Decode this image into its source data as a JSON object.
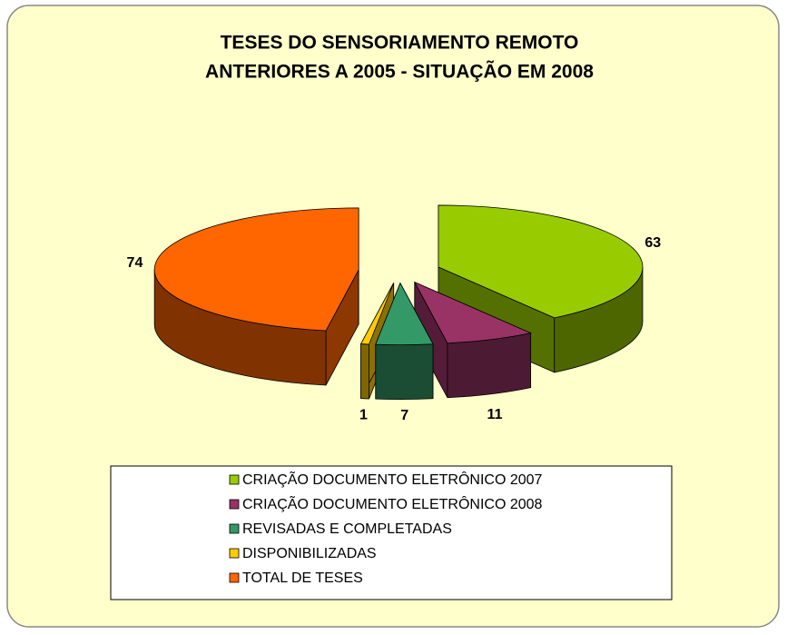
{
  "chart_data": {
    "type": "pie",
    "title": [
      "TESES DO SENSORIAMENTO REMOTO",
      "ANTERIORES A 2005 - SITUAÇÃO EM 2008"
    ],
    "categories": [
      "CRIAÇÃO DOCUMENTO ELETRÔNICO 2007",
      "CRIAÇÃO DOCUMENTO ELETRÔNICO 2008",
      "REVISADAS E COMPLETADAS",
      "DISPONIBILIZADAS",
      "TOTAL DE TESES"
    ],
    "values": [
      63,
      11,
      7,
      1,
      74
    ],
    "colors": [
      "#99cc00",
      "#993366",
      "#339966",
      "#ffcc00",
      "#ff6600"
    ],
    "legend": "bottom"
  }
}
